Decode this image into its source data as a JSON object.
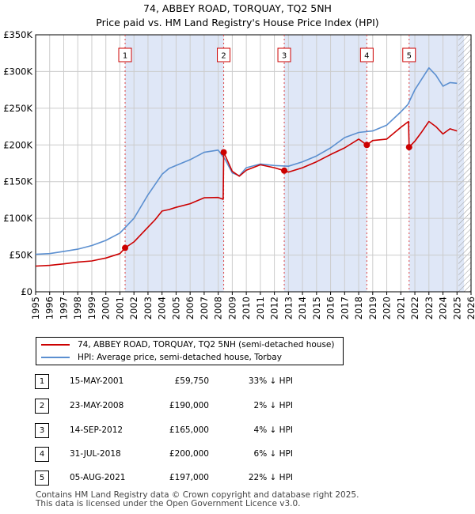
{
  "title": {
    "line1": "74, ABBEY ROAD, TORQUAY, TQ2 5NH",
    "line2": "Price paid vs. HM Land Registry's House Price Index (HPI)"
  },
  "colors": {
    "property": "#cc0000",
    "hpi": "#5b8fd0",
    "shade": "#dfe7f7",
    "grid": "#cccccc",
    "marker_line": "#dd4444"
  },
  "chart_data": {
    "type": "line",
    "xlim": [
      1995,
      2026
    ],
    "ylim": [
      0,
      350000
    ],
    "x_ticks": [
      "1995",
      "1996",
      "1997",
      "1998",
      "1999",
      "2000",
      "2001",
      "2002",
      "2003",
      "2004",
      "2005",
      "2006",
      "2007",
      "2008",
      "2009",
      "2010",
      "2011",
      "2012",
      "2013",
      "2014",
      "2015",
      "2016",
      "2017",
      "2018",
      "2019",
      "2020",
      "2021",
      "2022",
      "2023",
      "2024",
      "2025",
      "2026"
    ],
    "y_ticks": [
      {
        "value": 0,
        "label": "£0"
      },
      {
        "value": 50000,
        "label": "£50K"
      },
      {
        "value": 100000,
        "label": "£100K"
      },
      {
        "value": 150000,
        "label": "£150K"
      },
      {
        "value": 200000,
        "label": "£200K"
      },
      {
        "value": 250000,
        "label": "£250K"
      },
      {
        "value": 300000,
        "label": "£300K"
      },
      {
        "value": 350000,
        "label": "£350K"
      }
    ],
    "shaded_ranges": [
      [
        2001.37,
        2008.39
      ],
      [
        2012.7,
        2018.58
      ],
      [
        2021.59,
        2025.5
      ]
    ],
    "hatched_from": 2025.1,
    "series": [
      {
        "name": "74, ABBEY ROAD, TORQUAY, TQ2 5NH (semi-detached house)",
        "color_key": "property",
        "x": [
          1995,
          1996,
          1997,
          1998,
          1999,
          2000,
          2001,
          2001.37,
          2002,
          2003,
          2003.5,
          2004,
          2004.5,
          2005,
          2006,
          2007,
          2008,
          2008.35,
          2008.39,
          2009,
          2009.5,
          2010,
          2011,
          2012,
          2012.7,
          2013,
          2014,
          2015,
          2016,
          2017,
          2018,
          2018.58,
          2019,
          2020,
          2021,
          2021.55,
          2021.59,
          2022,
          2022.5,
          2023,
          2023.5,
          2024,
          2024.5,
          2025
        ],
        "y": [
          35000,
          36000,
          38000,
          40500,
          42000,
          46000,
          52000,
          59750,
          68000,
          88000,
          98000,
          110000,
          112000,
          115000,
          120000,
          128000,
          128500,
          126000,
          190000,
          164000,
          157500,
          165500,
          173000,
          169000,
          165000,
          163000,
          169000,
          177000,
          187000,
          196000,
          208000,
          200000,
          206000,
          208000,
          224000,
          232000,
          197000,
          205000,
          218000,
          232000,
          225000,
          215000,
          222000,
          219000
        ]
      },
      {
        "name": "HPI: Average price, semi-detached house, Torbay",
        "color_key": "hpi",
        "x": [
          1995,
          1996,
          1997,
          1998,
          1999,
          2000,
          2001,
          2002,
          2003,
          2004,
          2004.5,
          2005,
          2006,
          2007,
          2008,
          2008.5,
          2009,
          2009.5,
          2010,
          2011,
          2012,
          2013,
          2014,
          2015,
          2016,
          2017,
          2018,
          2019,
          2020,
          2021,
          2021.5,
          2022,
          2022.5,
          2023,
          2023.5,
          2024,
          2024.5,
          2025
        ],
        "y": [
          51000,
          52000,
          55000,
          58000,
          63000,
          70000,
          80000,
          100000,
          132000,
          160000,
          168000,
          172000,
          180000,
          190000,
          193000,
          180000,
          162000,
          158000,
          169000,
          174000,
          172000,
          171000,
          177000,
          185000,
          196000,
          210000,
          217000,
          219000,
          227000,
          245000,
          255000,
          275000,
          290000,
          305000,
          295000,
          280000,
          285000,
          284000
        ]
      }
    ],
    "sales": [
      {
        "label": "1",
        "x": 2001.37,
        "y": 59750
      },
      {
        "label": "2",
        "x": 2008.39,
        "y": 190000
      },
      {
        "label": "3",
        "x": 2012.7,
        "y": 165000
      },
      {
        "label": "4",
        "x": 2018.58,
        "y": 200000
      },
      {
        "label": "5",
        "x": 2021.59,
        "y": 197000
      }
    ]
  },
  "legend": {
    "property_label": "74, ABBEY ROAD, TORQUAY, TQ2 5NH (semi-detached house)",
    "hpi_label": "HPI: Average price, semi-detached house, Torbay"
  },
  "transactions": [
    {
      "num": "1",
      "date": "15-MAY-2001",
      "price": "£59,750",
      "hpi": "33% ↓ HPI"
    },
    {
      "num": "2",
      "date": "23-MAY-2008",
      "price": "£190,000",
      "hpi": "2% ↓ HPI"
    },
    {
      "num": "3",
      "date": "14-SEP-2012",
      "price": "£165,000",
      "hpi": "4% ↓ HPI"
    },
    {
      "num": "4",
      "date": "31-JUL-2018",
      "price": "£200,000",
      "hpi": "6% ↓ HPI"
    },
    {
      "num": "5",
      "date": "05-AUG-2021",
      "price": "£197,000",
      "hpi": "22% ↓ HPI"
    }
  ],
  "footer": {
    "line1": "Contains HM Land Registry data © Crown copyright and database right 2025.",
    "line2": "This data is licensed under the Open Government Licence v3.0."
  }
}
